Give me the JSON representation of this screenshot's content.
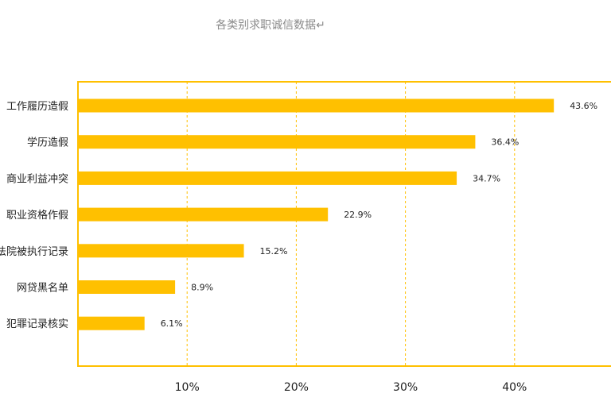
{
  "chart_data": {
    "type": "bar",
    "orientation": "horizontal",
    "title": "各类别求职诚信数据↵",
    "categories": [
      "工作履历造假",
      "学历造假",
      "商业利益冲突",
      "职业资格作假",
      "法院被执行记录",
      "网贷黑名单",
      "犯罪记录核实"
    ],
    "values": [
      43.6,
      36.4,
      34.7,
      22.9,
      15.2,
      8.9,
      6.1
    ],
    "value_labels": [
      "43.6%",
      "36.4%",
      "34.7%",
      "22.9%",
      "15.2%",
      "8.9%",
      "6.1%"
    ],
    "x_ticks": [
      {
        "value": 10,
        "label": "10%"
      },
      {
        "value": 20,
        "label": "20%"
      },
      {
        "value": 30,
        "label": "30%"
      },
      {
        "value": 40,
        "label": "40%"
      }
    ],
    "xlim": [
      0,
      50
    ],
    "grid": "dashed vertical",
    "xlabel": "",
    "ylabel": "",
    "colors": {
      "bar": "#FFC000",
      "frame": "#FFC000",
      "grid": "#FFC000",
      "title": "#8a8a8a",
      "text": "#222222"
    }
  }
}
